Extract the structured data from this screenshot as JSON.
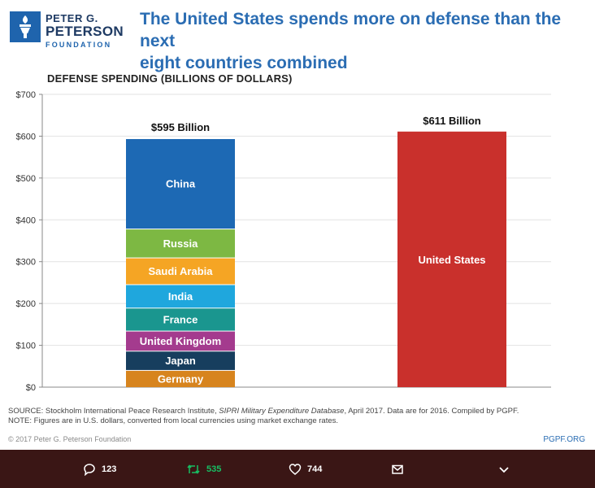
{
  "header": {
    "logo_line1": "PETER G.",
    "logo_line2": "PETERSON",
    "logo_line3": "FOUNDATION",
    "headline_line1": "The United States spends more on defense than the next",
    "headline_line2": "eight countries combined"
  },
  "chart_data": {
    "type": "bar",
    "title": "DEFENSE SPENDING (BILLIONS OF DOLLARS)",
    "ylim": [
      0,
      700
    ],
    "yticks": [
      "$0",
      "$100",
      "$200",
      "$300",
      "$400",
      "$500",
      "$600",
      "$700"
    ],
    "bars": [
      {
        "total_label": "$595 Billion",
        "total": 595,
        "segments": [
          {
            "name": "Germany",
            "value": 41,
            "color": "#d7841e"
          },
          {
            "name": "Japan",
            "value": 46,
            "color": "#173e5e"
          },
          {
            "name": "United Kingdom",
            "value": 48,
            "color": "#a43b8e"
          },
          {
            "name": "France",
            "value": 55,
            "color": "#1a968f"
          },
          {
            "name": "India",
            "value": 56,
            "color": "#1fa7dd"
          },
          {
            "name": "Saudi Arabia",
            "value": 64,
            "color": "#f5a524"
          },
          {
            "name": "Russia",
            "value": 69,
            "color": "#7db843"
          },
          {
            "name": "China",
            "value": 216,
            "color": "#1d69b4"
          }
        ]
      },
      {
        "total_label": "$611 Billion",
        "total": 611,
        "segments": [
          {
            "name": "United States",
            "value": 611,
            "color": "#c9302c"
          }
        ]
      }
    ]
  },
  "footer": {
    "source_prefix": "SOURCE: Stockholm International Peace Research Institute, ",
    "source_italic": "SIPRI Military Expenditure Database",
    "source_suffix": ", April 2017. Data are for 2016. Compiled by PGPF.",
    "note": "NOTE: Figures are in U.S. dollars, converted from local currencies using market exchange rates.",
    "copyright": "© 2017 Peter G. Peterson Foundation",
    "site": "PGPF.ORG"
  },
  "actions": {
    "replies": "123",
    "retweets": "535",
    "likes": "744",
    "retweet_color": "#17bf63"
  }
}
